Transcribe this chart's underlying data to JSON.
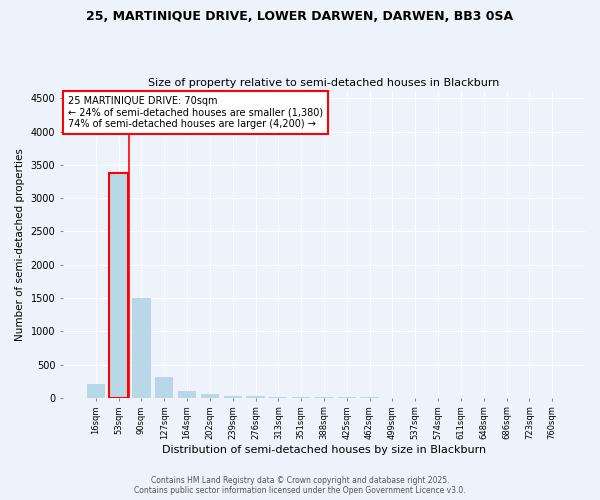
{
  "title1": "25, MARTINIQUE DRIVE, LOWER DARWEN, DARWEN, BB3 0SA",
  "title2": "Size of property relative to semi-detached houses in Blackburn",
  "xlabel": "Distribution of semi-detached houses by size in Blackburn",
  "ylabel": "Number of semi-detached properties",
  "footer1": "Contains HM Land Registry data © Crown copyright and database right 2025.",
  "footer2": "Contains public sector information licensed under the Open Government Licence v3.0.",
  "annotation_line1": "25 MARTINIQUE DRIVE: 70sqm",
  "annotation_line2": "← 24% of semi-detached houses are smaller (1,380)",
  "annotation_line3": "74% of semi-detached houses are larger (4,200) →",
  "categories": [
    "16sqm",
    "53sqm",
    "90sqm",
    "127sqm",
    "164sqm",
    "202sqm",
    "239sqm",
    "276sqm",
    "313sqm",
    "351sqm",
    "388sqm",
    "425sqm",
    "462sqm",
    "499sqm",
    "537sqm",
    "574sqm",
    "611sqm",
    "648sqm",
    "686sqm",
    "723sqm",
    "760sqm"
  ],
  "values": [
    200,
    3380,
    1500,
    320,
    100,
    50,
    30,
    20,
    15,
    10,
    8,
    6,
    5,
    4,
    3,
    3,
    2,
    2,
    1,
    1,
    1
  ],
  "bar_color": "#b8d8e8",
  "highlight_color": "#ff0000",
  "highlight_bar_index": 1,
  "property_line_x": 1.47,
  "ylim": [
    0,
    4600
  ],
  "yticks": [
    0,
    500,
    1000,
    1500,
    2000,
    2500,
    3000,
    3500,
    4000,
    4500
  ],
  "background_color": "#eef2fb",
  "annotation_box_color": "#ffffff",
  "annotation_box_edge": "#ff0000",
  "grid_color": "#ffffff",
  "fig_width": 6.0,
  "fig_height": 5.0,
  "dpi": 100
}
